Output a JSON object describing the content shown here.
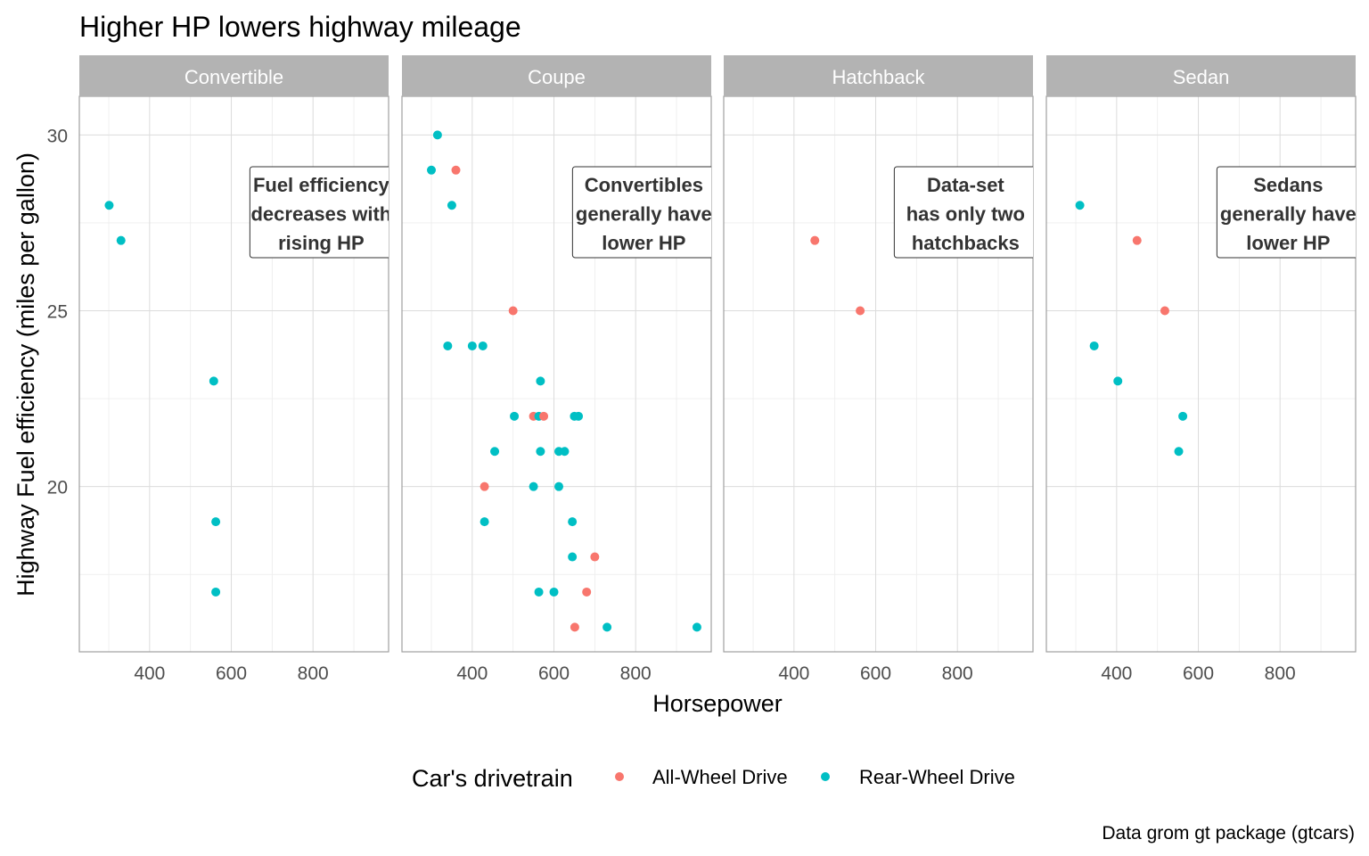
{
  "chart_data": {
    "type": "scatter",
    "title": "Higher HP lowers highway mileage",
    "xlabel": "Horsepower",
    "ylabel": "Highway Fuel efficiency (miles per gallon)",
    "caption": "Data grom gt package (gtcars)",
    "xlim": [
      228,
      985
    ],
    "ylim": [
      15.3,
      31.1
    ],
    "x_ticks": [
      "400",
      "600",
      "800"
    ],
    "x_tick_values": [
      400,
      600,
      800
    ],
    "y_ticks": [
      "20",
      "25",
      "30"
    ],
    "y_tick_values": [
      20,
      25,
      30
    ],
    "grid": true,
    "legend": {
      "title": "Car's drivetrain",
      "position": "bottom",
      "entries": [
        {
          "label": "All-Wheel Drive",
          "color": "#F8766D"
        },
        {
          "label": "Rear-Wheel Drive",
          "color": "#00BFC4"
        }
      ]
    },
    "facets": [
      {
        "name": "Convertible",
        "annotation": [
          "Fuel efficiency",
          "decreases with",
          "rising HP"
        ],
        "points": [
          {
            "x": 301,
            "y": 28,
            "drive": "Rear-Wheel Drive"
          },
          {
            "x": 330,
            "y": 27,
            "drive": "Rear-Wheel Drive"
          },
          {
            "x": 557,
            "y": 23,
            "drive": "Rear-Wheel Drive"
          },
          {
            "x": 562,
            "y": 19,
            "drive": "Rear-Wheel Drive"
          },
          {
            "x": 562,
            "y": 17,
            "drive": "Rear-Wheel Drive"
          }
        ]
      },
      {
        "name": "Coupe",
        "annotation": [
          "Convertibles",
          "generally have",
          "lower HP"
        ],
        "points": [
          {
            "x": 315,
            "y": 30,
            "drive": "Rear-Wheel Drive"
          },
          {
            "x": 300,
            "y": 29,
            "drive": "Rear-Wheel Drive"
          },
          {
            "x": 360,
            "y": 29,
            "drive": "All-Wheel Drive"
          },
          {
            "x": 350,
            "y": 28,
            "drive": "Rear-Wheel Drive"
          },
          {
            "x": 500,
            "y": 25,
            "drive": "All-Wheel Drive"
          },
          {
            "x": 340,
            "y": 24,
            "drive": "Rear-Wheel Drive"
          },
          {
            "x": 400,
            "y": 24,
            "drive": "Rear-Wheel Drive"
          },
          {
            "x": 426,
            "y": 24,
            "drive": "Rear-Wheel Drive"
          },
          {
            "x": 567,
            "y": 23,
            "drive": "Rear-Wheel Drive"
          },
          {
            "x": 503,
            "y": 22,
            "drive": "Rear-Wheel Drive"
          },
          {
            "x": 550,
            "y": 22,
            "drive": "All-Wheel Drive"
          },
          {
            "x": 563,
            "y": 22,
            "drive": "Rear-Wheel Drive"
          },
          {
            "x": 575,
            "y": 22,
            "drive": "All-Wheel Drive"
          },
          {
            "x": 650,
            "y": 22,
            "drive": "Rear-Wheel Drive"
          },
          {
            "x": 660,
            "y": 22,
            "drive": "Rear-Wheel Drive"
          },
          {
            "x": 455,
            "y": 21,
            "drive": "Rear-Wheel Drive"
          },
          {
            "x": 567,
            "y": 21,
            "drive": "Rear-Wheel Drive"
          },
          {
            "x": 612,
            "y": 21,
            "drive": "Rear-Wheel Drive"
          },
          {
            "x": 626,
            "y": 21,
            "drive": "Rear-Wheel Drive"
          },
          {
            "x": 430,
            "y": 20,
            "drive": "All-Wheel Drive"
          },
          {
            "x": 550,
            "y": 20,
            "drive": "Rear-Wheel Drive"
          },
          {
            "x": 612,
            "y": 20,
            "drive": "Rear-Wheel Drive"
          },
          {
            "x": 430,
            "y": 19,
            "drive": "Rear-Wheel Drive"
          },
          {
            "x": 645,
            "y": 19,
            "drive": "Rear-Wheel Drive"
          },
          {
            "x": 700,
            "y": 18,
            "drive": "All-Wheel Drive"
          },
          {
            "x": 645,
            "y": 18,
            "drive": "Rear-Wheel Drive"
          },
          {
            "x": 563,
            "y": 17,
            "drive": "Rear-Wheel Drive"
          },
          {
            "x": 600,
            "y": 17,
            "drive": "Rear-Wheel Drive"
          },
          {
            "x": 680,
            "y": 17,
            "drive": "All-Wheel Drive"
          },
          {
            "x": 651,
            "y": 16,
            "drive": "All-Wheel Drive"
          },
          {
            "x": 730,
            "y": 16,
            "drive": "Rear-Wheel Drive"
          },
          {
            "x": 950,
            "y": 16,
            "drive": "Rear-Wheel Drive"
          }
        ]
      },
      {
        "name": "Hatchback",
        "annotation": [
          "Data-set",
          "has only two",
          "hatchbacks"
        ],
        "points": [
          {
            "x": 451,
            "y": 27,
            "drive": "All-Wheel Drive"
          },
          {
            "x": 562,
            "y": 25,
            "drive": "All-Wheel Drive"
          }
        ]
      },
      {
        "name": "Sedan",
        "annotation": [
          "Sedans",
          "generally have",
          "lower HP"
        ],
        "points": [
          {
            "x": 310,
            "y": 28,
            "drive": "Rear-Wheel Drive"
          },
          {
            "x": 450,
            "y": 27,
            "drive": "All-Wheel Drive"
          },
          {
            "x": 518,
            "y": 25,
            "drive": "All-Wheel Drive"
          },
          {
            "x": 345,
            "y": 24,
            "drive": "Rear-Wheel Drive"
          },
          {
            "x": 403,
            "y": 23,
            "drive": "Rear-Wheel Drive"
          },
          {
            "x": 562,
            "y": 22,
            "drive": "Rear-Wheel Drive"
          },
          {
            "x": 552,
            "y": 21,
            "drive": "Rear-Wheel Drive"
          }
        ]
      }
    ]
  }
}
